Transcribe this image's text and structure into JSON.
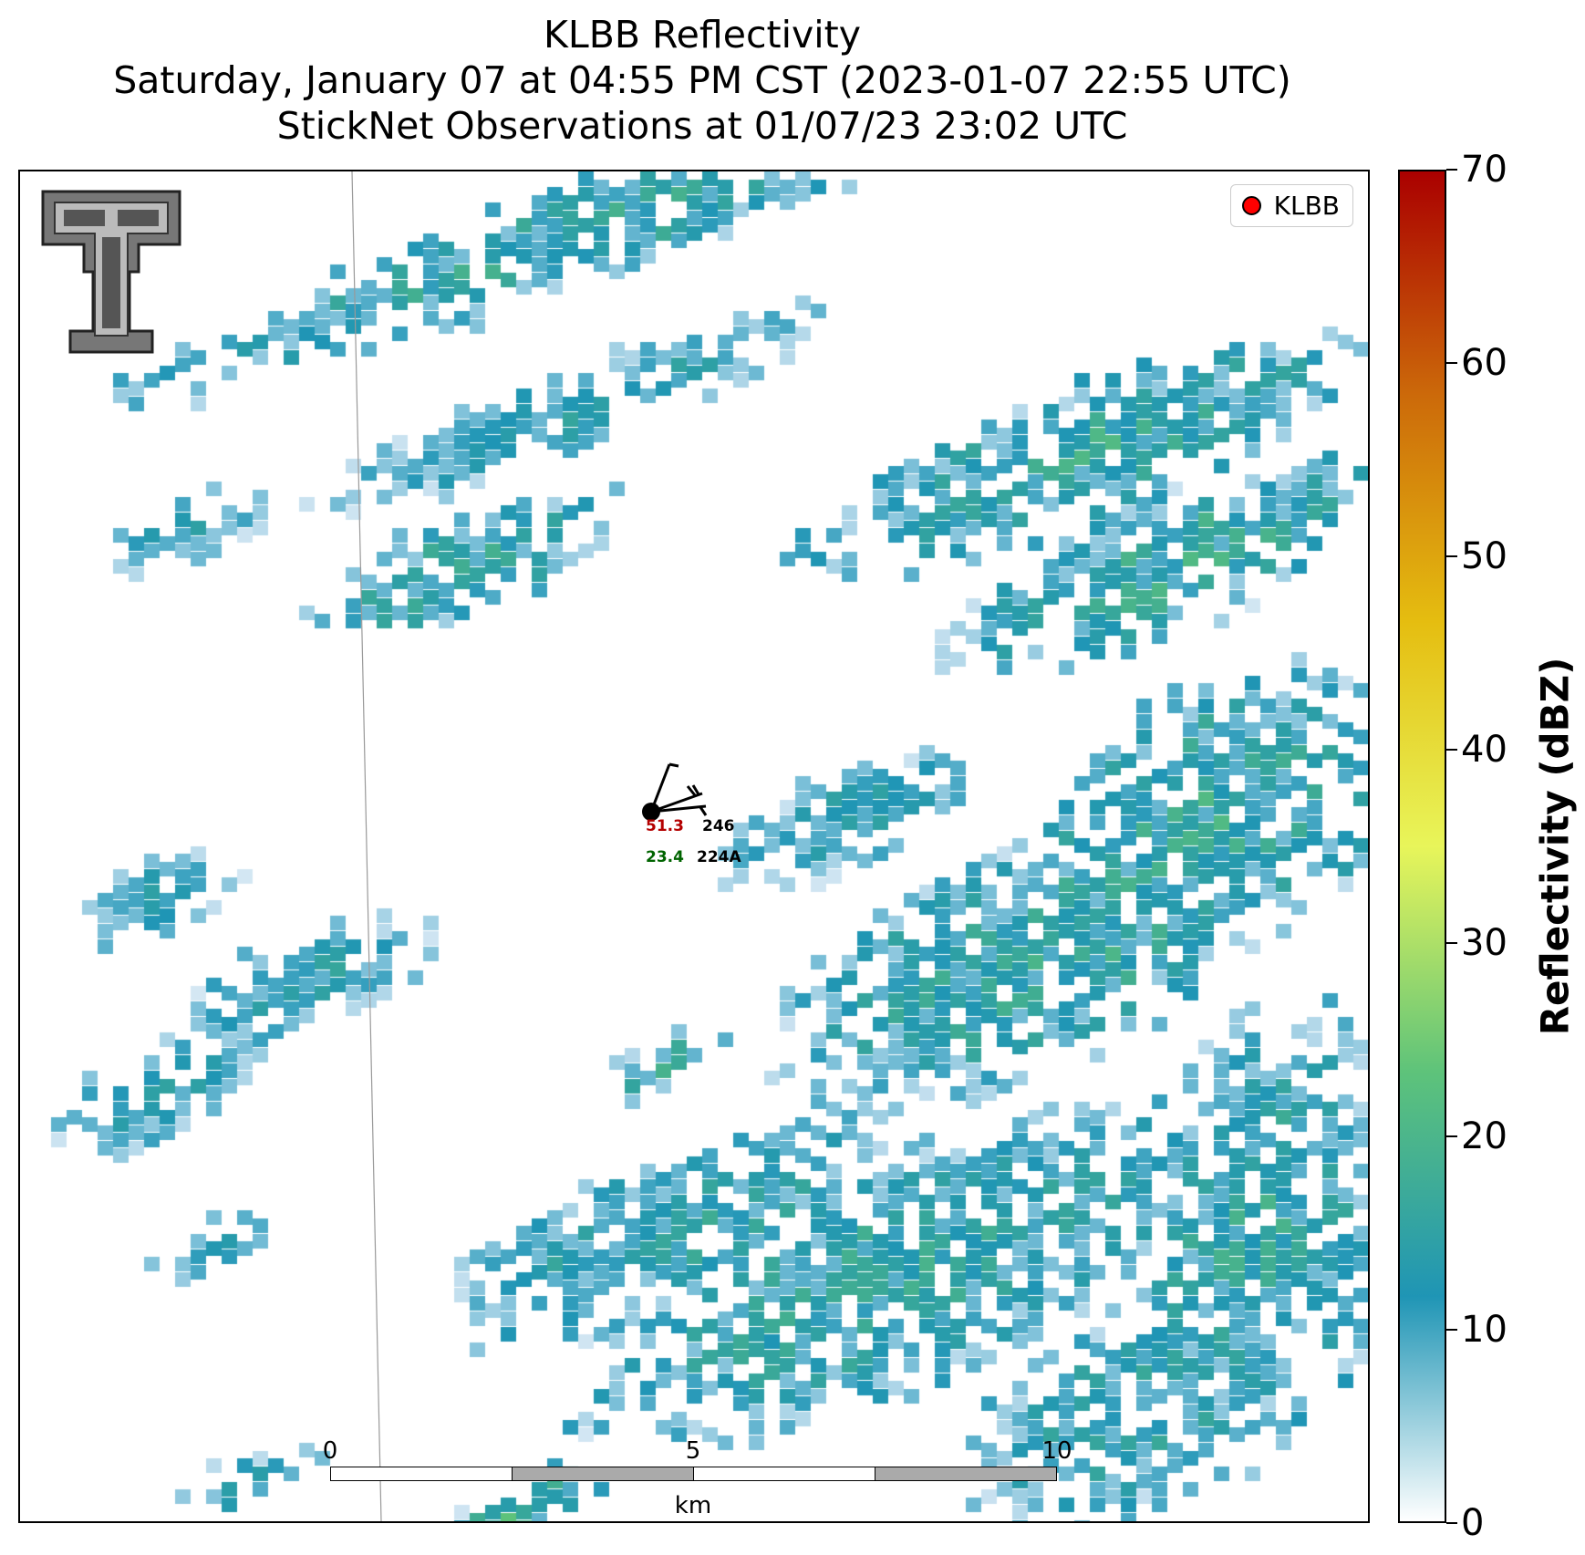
{
  "titles": {
    "line1": "KLBB Reflectivity",
    "line2": "Saturday, January 07 at 04:55 PM CST (2023-01-07 22:55 UTC)",
    "line3": "StickNet Observations at 01/07/23 23:02 UTC"
  },
  "legend": {
    "label": "KLBB",
    "marker_color": "#ff0000"
  },
  "colorbar": {
    "title": "Reflectivity (dBZ)",
    "ticks": [
      "0",
      "10",
      "20",
      "30",
      "40",
      "50",
      "60",
      "70"
    ],
    "range": [
      0,
      70
    ],
    "stops": [
      "#ffffff",
      "#1f95b5",
      "#5ec37a",
      "#e8f55a",
      "#e5bd10",
      "#cc6a0a",
      "#aa0000"
    ]
  },
  "scalebar": {
    "labels": [
      "0",
      "5",
      "10"
    ],
    "unit": "km"
  },
  "station": {
    "temp": "51.3",
    "dewpoint": "23.4",
    "id_top": "246",
    "id_bottom": "224A",
    "temp_color": "#b40000",
    "dew_color": "#006400"
  },
  "logo": {
    "icon": "texas-tech-double-t-logo"
  },
  "seed": 7
}
